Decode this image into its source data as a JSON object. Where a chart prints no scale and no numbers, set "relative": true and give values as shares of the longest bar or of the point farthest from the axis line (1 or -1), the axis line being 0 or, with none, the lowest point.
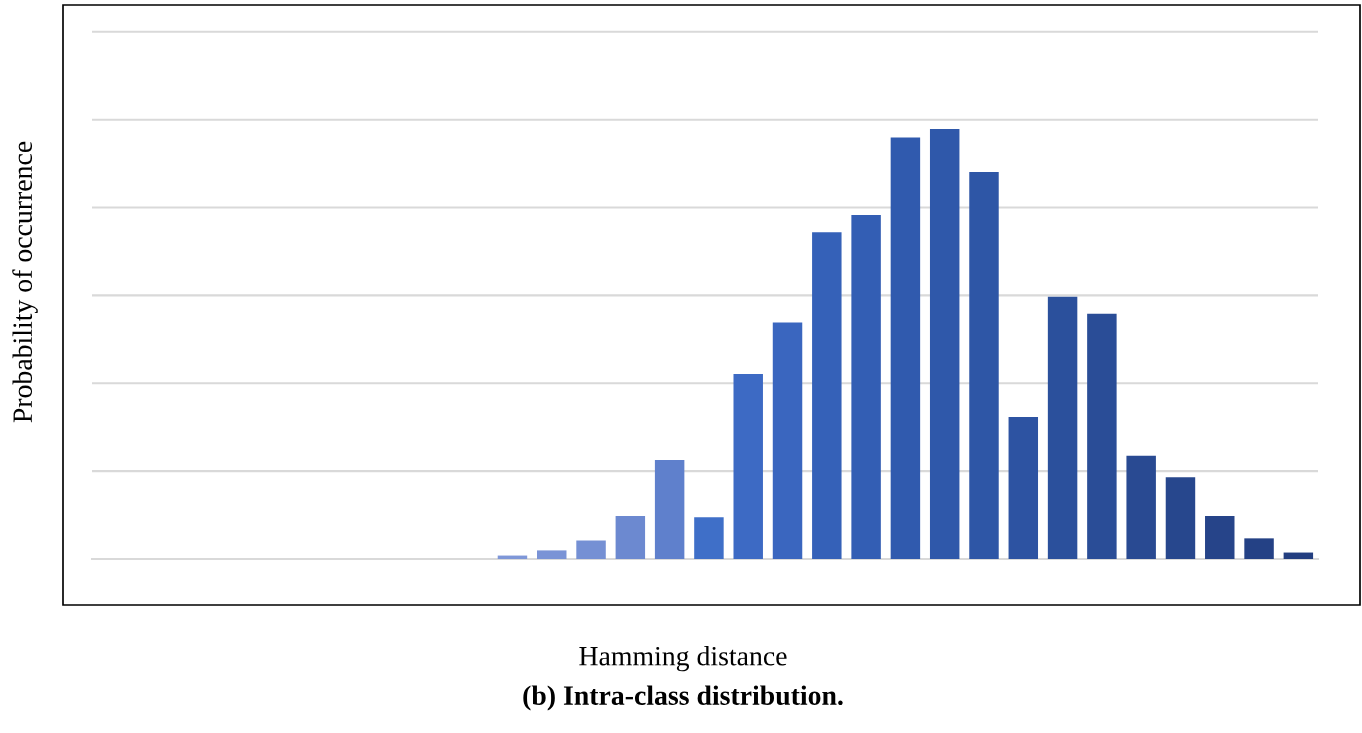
{
  "chart_data": {
    "type": "bar",
    "relative": true,
    "title": "(b) Intra-class distribution.",
    "xlabel": "Hamming distance",
    "annotations": [
      "Probability of occurrence"
    ],
    "grid": "y",
    "categories": [
      null,
      null,
      null,
      null,
      null,
      null,
      null,
      null,
      null,
      null,
      null,
      null,
      null,
      null,
      null,
      null,
      null,
      null,
      null,
      null,
      null
    ],
    "values": [
      0.008,
      0.02,
      0.043,
      0.1,
      0.23,
      0.097,
      0.43,
      0.55,
      0.76,
      0.8,
      0.98,
      1,
      0.9,
      0.33,
      0.61,
      0.57,
      0.24,
      0.19,
      0.1,
      0.048,
      0.015
    ],
    "colors": [
      "#7f97d8",
      "#7a93d6",
      "#7590d4",
      "#6c89d0",
      "#5f80cc",
      "#3f6fc8",
      "#3d6ac4",
      "#3a66bf",
      "#3561b8",
      "#335eb4",
      "#305aae",
      "#2f58aa",
      "#2e56a6",
      "#2d53a2",
      "#2b509c",
      "#2a4d97",
      "#294a92",
      "#27478d",
      "#264489",
      "#244185",
      "#233e80"
    ]
  }
}
